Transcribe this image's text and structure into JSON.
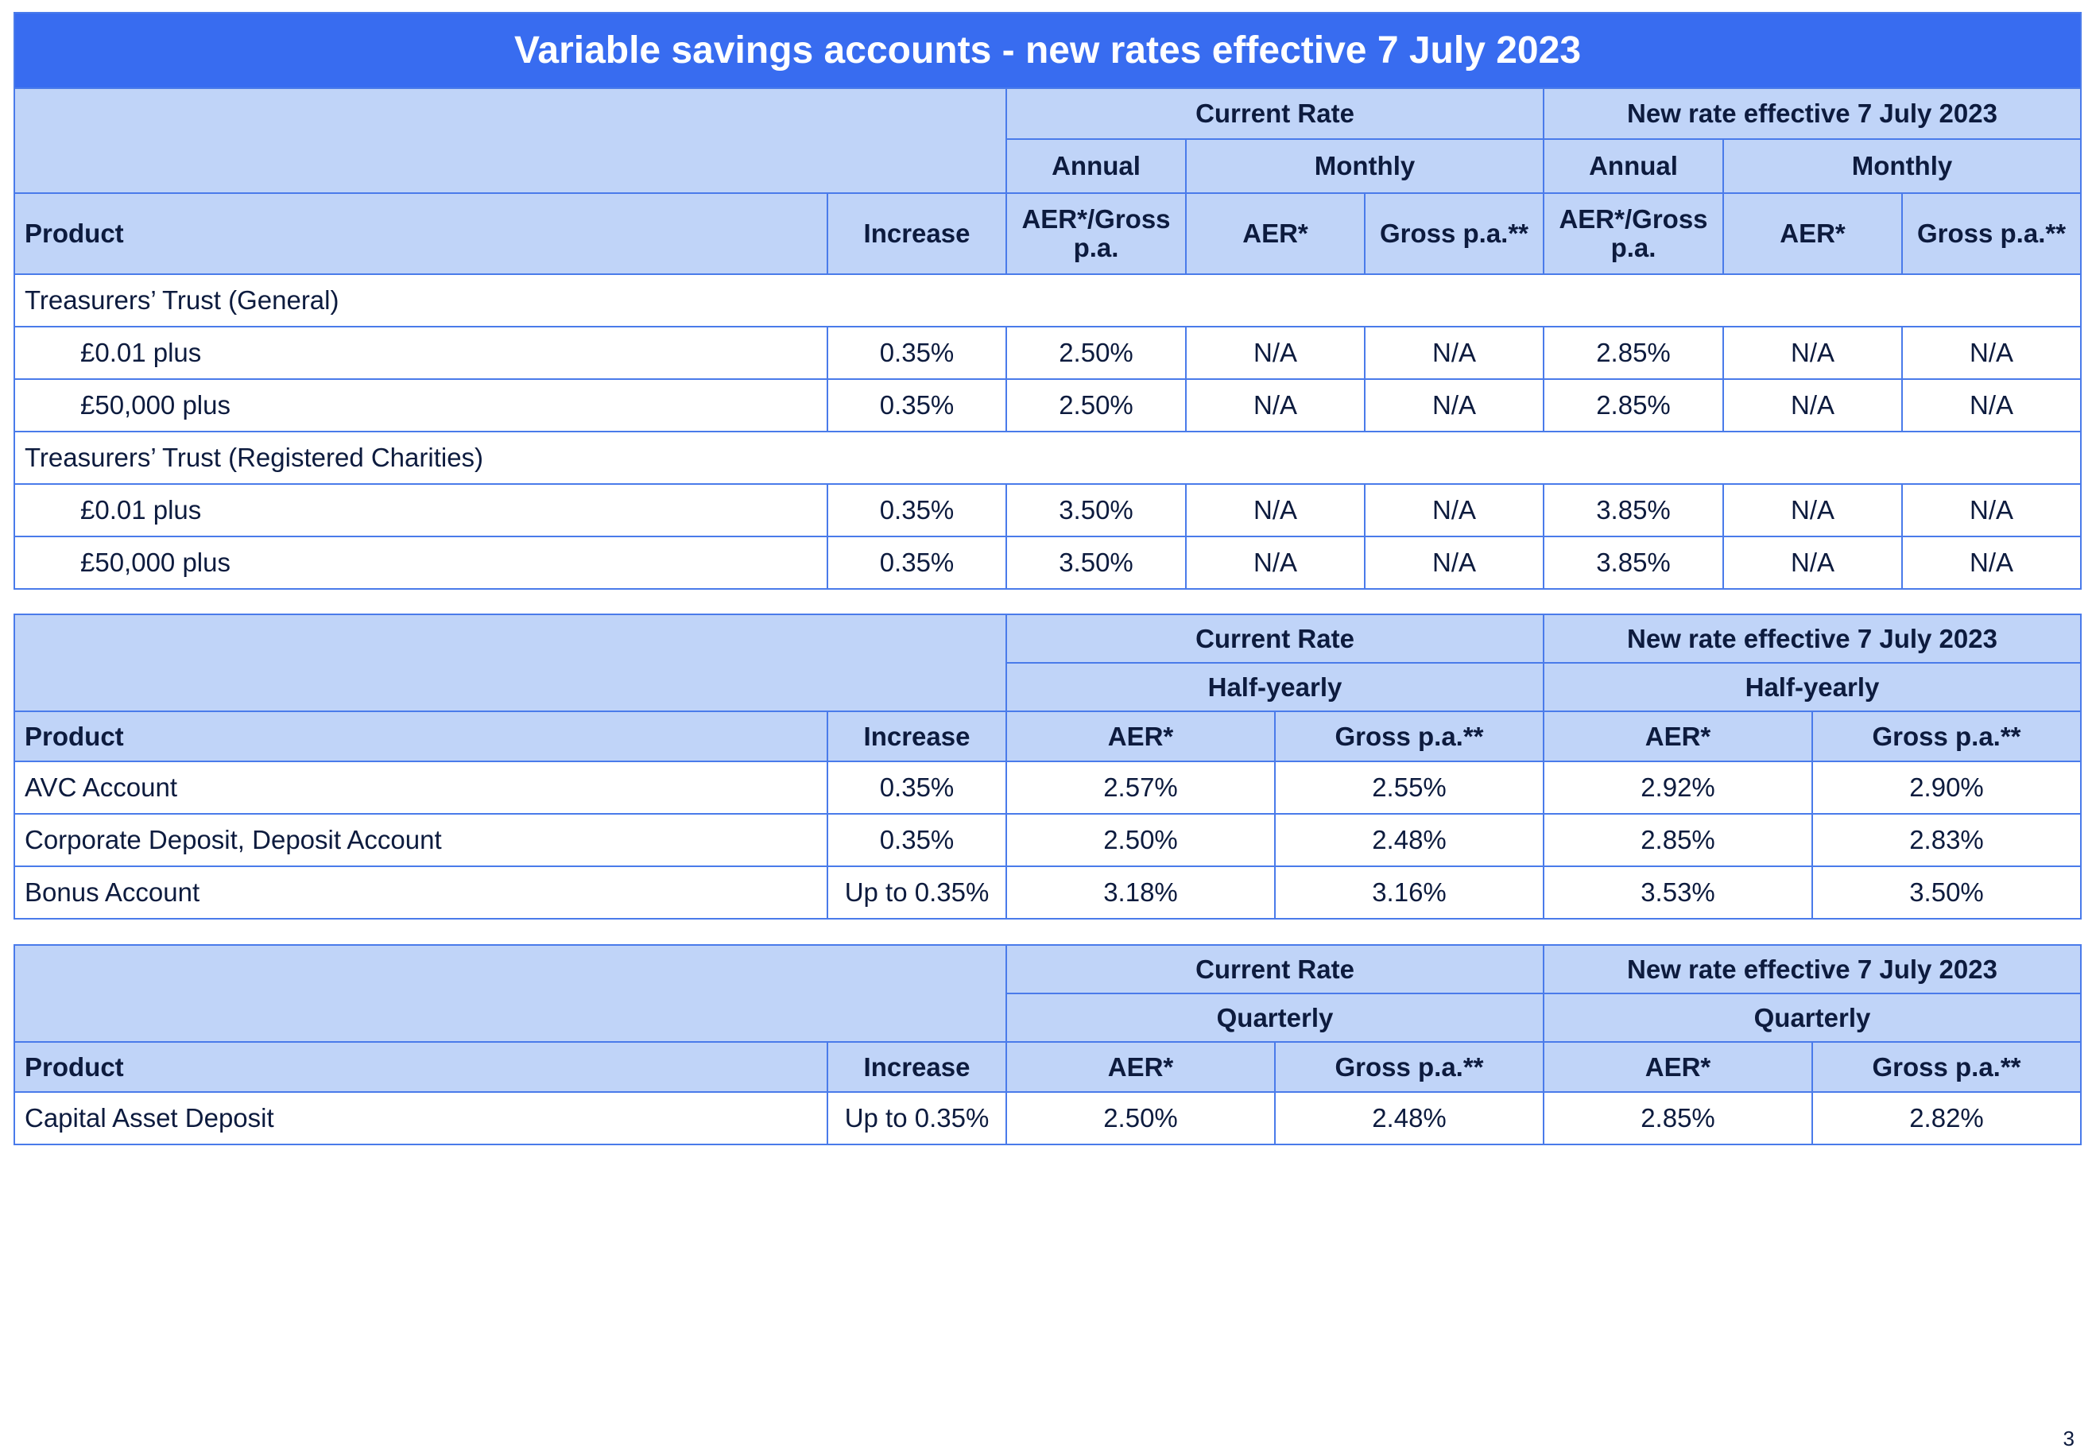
{
  "title": "Variable savings accounts - new rates effective 7 July 2023",
  "page_number": "3",
  "colors": {
    "title_bg": "#386cf0",
    "header_bg": "#c0d4f8",
    "border": "#4a7bea",
    "text": "#0d1b3e"
  },
  "table1": {
    "current_rate": "Current Rate",
    "new_rate": "New rate effective 7 July 2023",
    "annual": "Annual",
    "monthly": "Monthly",
    "product": "Product",
    "increase": "Increase",
    "aer_gross": "AER*/Gross p.a.",
    "aer": "AER*",
    "gross": "Gross p.a.**",
    "groups": [
      {
        "name": "Treasurers’ Trust (General)",
        "rows": [
          {
            "label": "£0.01 plus",
            "values": [
              "0.35%",
              "2.50%",
              "N/A",
              "N/A",
              "2.85%",
              "N/A",
              "N/A"
            ]
          },
          {
            "label": "£50,000 plus",
            "values": [
              "0.35%",
              "2.50%",
              "N/A",
              "N/A",
              "2.85%",
              "N/A",
              "N/A"
            ]
          }
        ]
      },
      {
        "name": "Treasurers’ Trust (Registered Charities)",
        "rows": [
          {
            "label": "£0.01 plus",
            "values": [
              "0.35%",
              "3.50%",
              "N/A",
              "N/A",
              "3.85%",
              "N/A",
              "N/A"
            ]
          },
          {
            "label": "£50,000 plus",
            "values": [
              "0.35%",
              "3.50%",
              "N/A",
              "N/A",
              "3.85%",
              "N/A",
              "N/A"
            ]
          }
        ]
      }
    ]
  },
  "table2": {
    "current_rate": "Current Rate",
    "new_rate": "New rate effective 7 July 2023",
    "period": "Half-yearly",
    "product": "Product",
    "increase": "Increase",
    "aer": "AER*",
    "gross": "Gross p.a.**",
    "rows": [
      {
        "label": "AVC Account",
        "values": [
          "0.35%",
          "2.57%",
          "2.55%",
          "2.92%",
          "2.90%"
        ]
      },
      {
        "label": "Corporate Deposit, Deposit Account",
        "values": [
          "0.35%",
          "2.50%",
          "2.48%",
          "2.85%",
          "2.83%"
        ]
      },
      {
        "label": "Bonus Account",
        "values": [
          "Up to 0.35%",
          "3.18%",
          "3.16%",
          "3.53%",
          "3.50%"
        ]
      }
    ]
  },
  "table3": {
    "current_rate": "Current Rate",
    "new_rate": "New rate effective 7 July 2023",
    "period": "Quarterly",
    "product": "Product",
    "increase": "Increase",
    "aer": "AER*",
    "gross": "Gross p.a.**",
    "rows": [
      {
        "label": "Capital Asset Deposit",
        "values": [
          "Up to 0.35%",
          "2.50%",
          "2.48%",
          "2.85%",
          "2.82%"
        ]
      }
    ]
  }
}
